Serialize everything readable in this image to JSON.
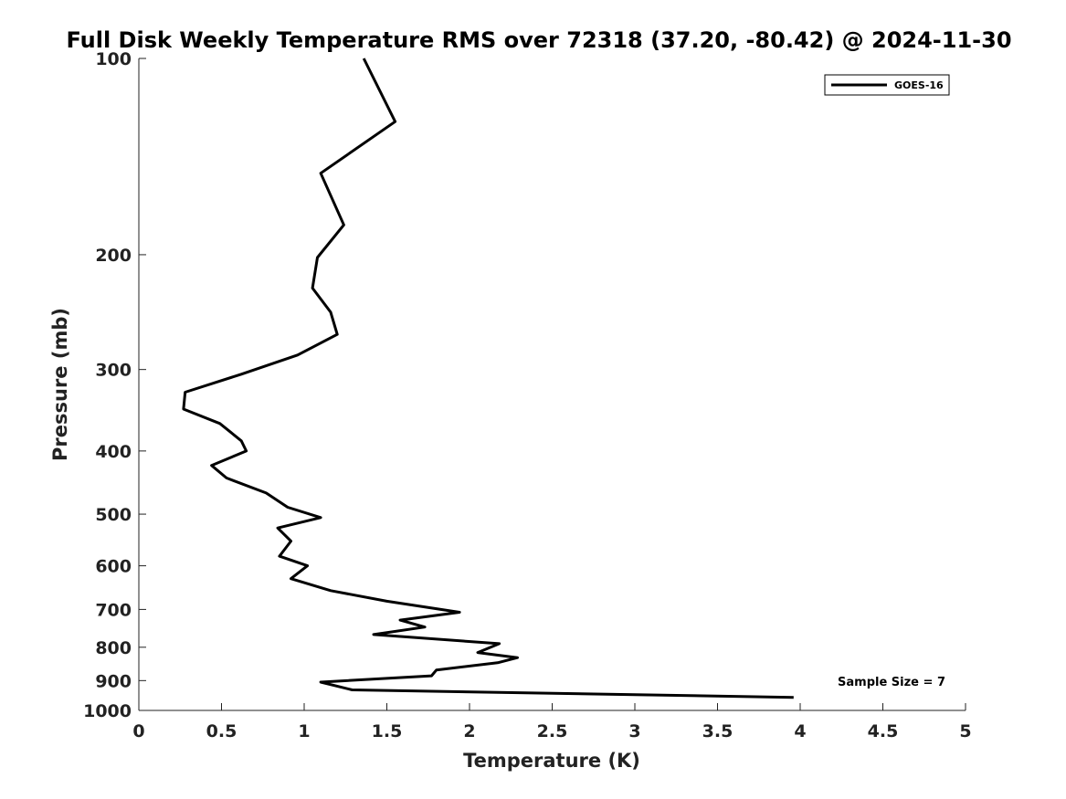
{
  "chart_data": {
    "type": "line",
    "title": "Full Disk Weekly Temperature RMS over 72318 (37.20, -80.42) @ 2024-11-30",
    "xlabel": "Temperature (K)",
    "ylabel": "Pressure (mb)",
    "xlim": [
      0,
      5
    ],
    "ylim": [
      1000,
      100
    ],
    "y_scale": "log",
    "x_ticks": [
      "0",
      "0.5",
      "1",
      "1.5",
      "2",
      "2.5",
      "3",
      "3.5",
      "4",
      "4.5",
      "5"
    ],
    "x_tick_values": [
      0,
      0.5,
      1,
      1.5,
      2,
      2.5,
      3,
      3.5,
      4,
      4.5,
      5
    ],
    "y_ticks": [
      "100",
      "200",
      "300",
      "400",
      "500",
      "600",
      "700",
      "800",
      "900",
      "1000"
    ],
    "y_tick_values": [
      100,
      200,
      300,
      400,
      500,
      600,
      700,
      800,
      900,
      1000
    ],
    "grid": false,
    "legend_position": "top-right",
    "series": [
      {
        "name": "GOES-16",
        "color": "#000000",
        "x": [
          1.36,
          1.55,
          1.1,
          1.24,
          1.08,
          1.05,
          1.16,
          1.2,
          0.96,
          0.62,
          0.28,
          0.27,
          0.49,
          0.62,
          0.65,
          0.44,
          0.53,
          0.77,
          0.9,
          1.1,
          0.84,
          0.92,
          0.85,
          1.02,
          0.92,
          1.16,
          1.5,
          1.94,
          1.58,
          1.73,
          1.42,
          2.18,
          2.05,
          2.29,
          2.17,
          1.8,
          1.77,
          1.1,
          1.29,
          3.96
        ],
        "y": [
          100,
          125,
          150,
          180,
          202,
          225,
          245,
          265,
          285,
          305,
          325,
          345,
          363,
          386,
          400,
          421,
          440,
          464,
          488,
          506,
          525,
          550,
          580,
          600,
          628,
          655,
          680,
          707,
          727,
          745,
          765,
          790,
          815,
          830,
          845,
          867,
          885,
          905,
          930,
          955
        ]
      }
    ],
    "annotations": [
      "Sample Size = 7"
    ]
  }
}
